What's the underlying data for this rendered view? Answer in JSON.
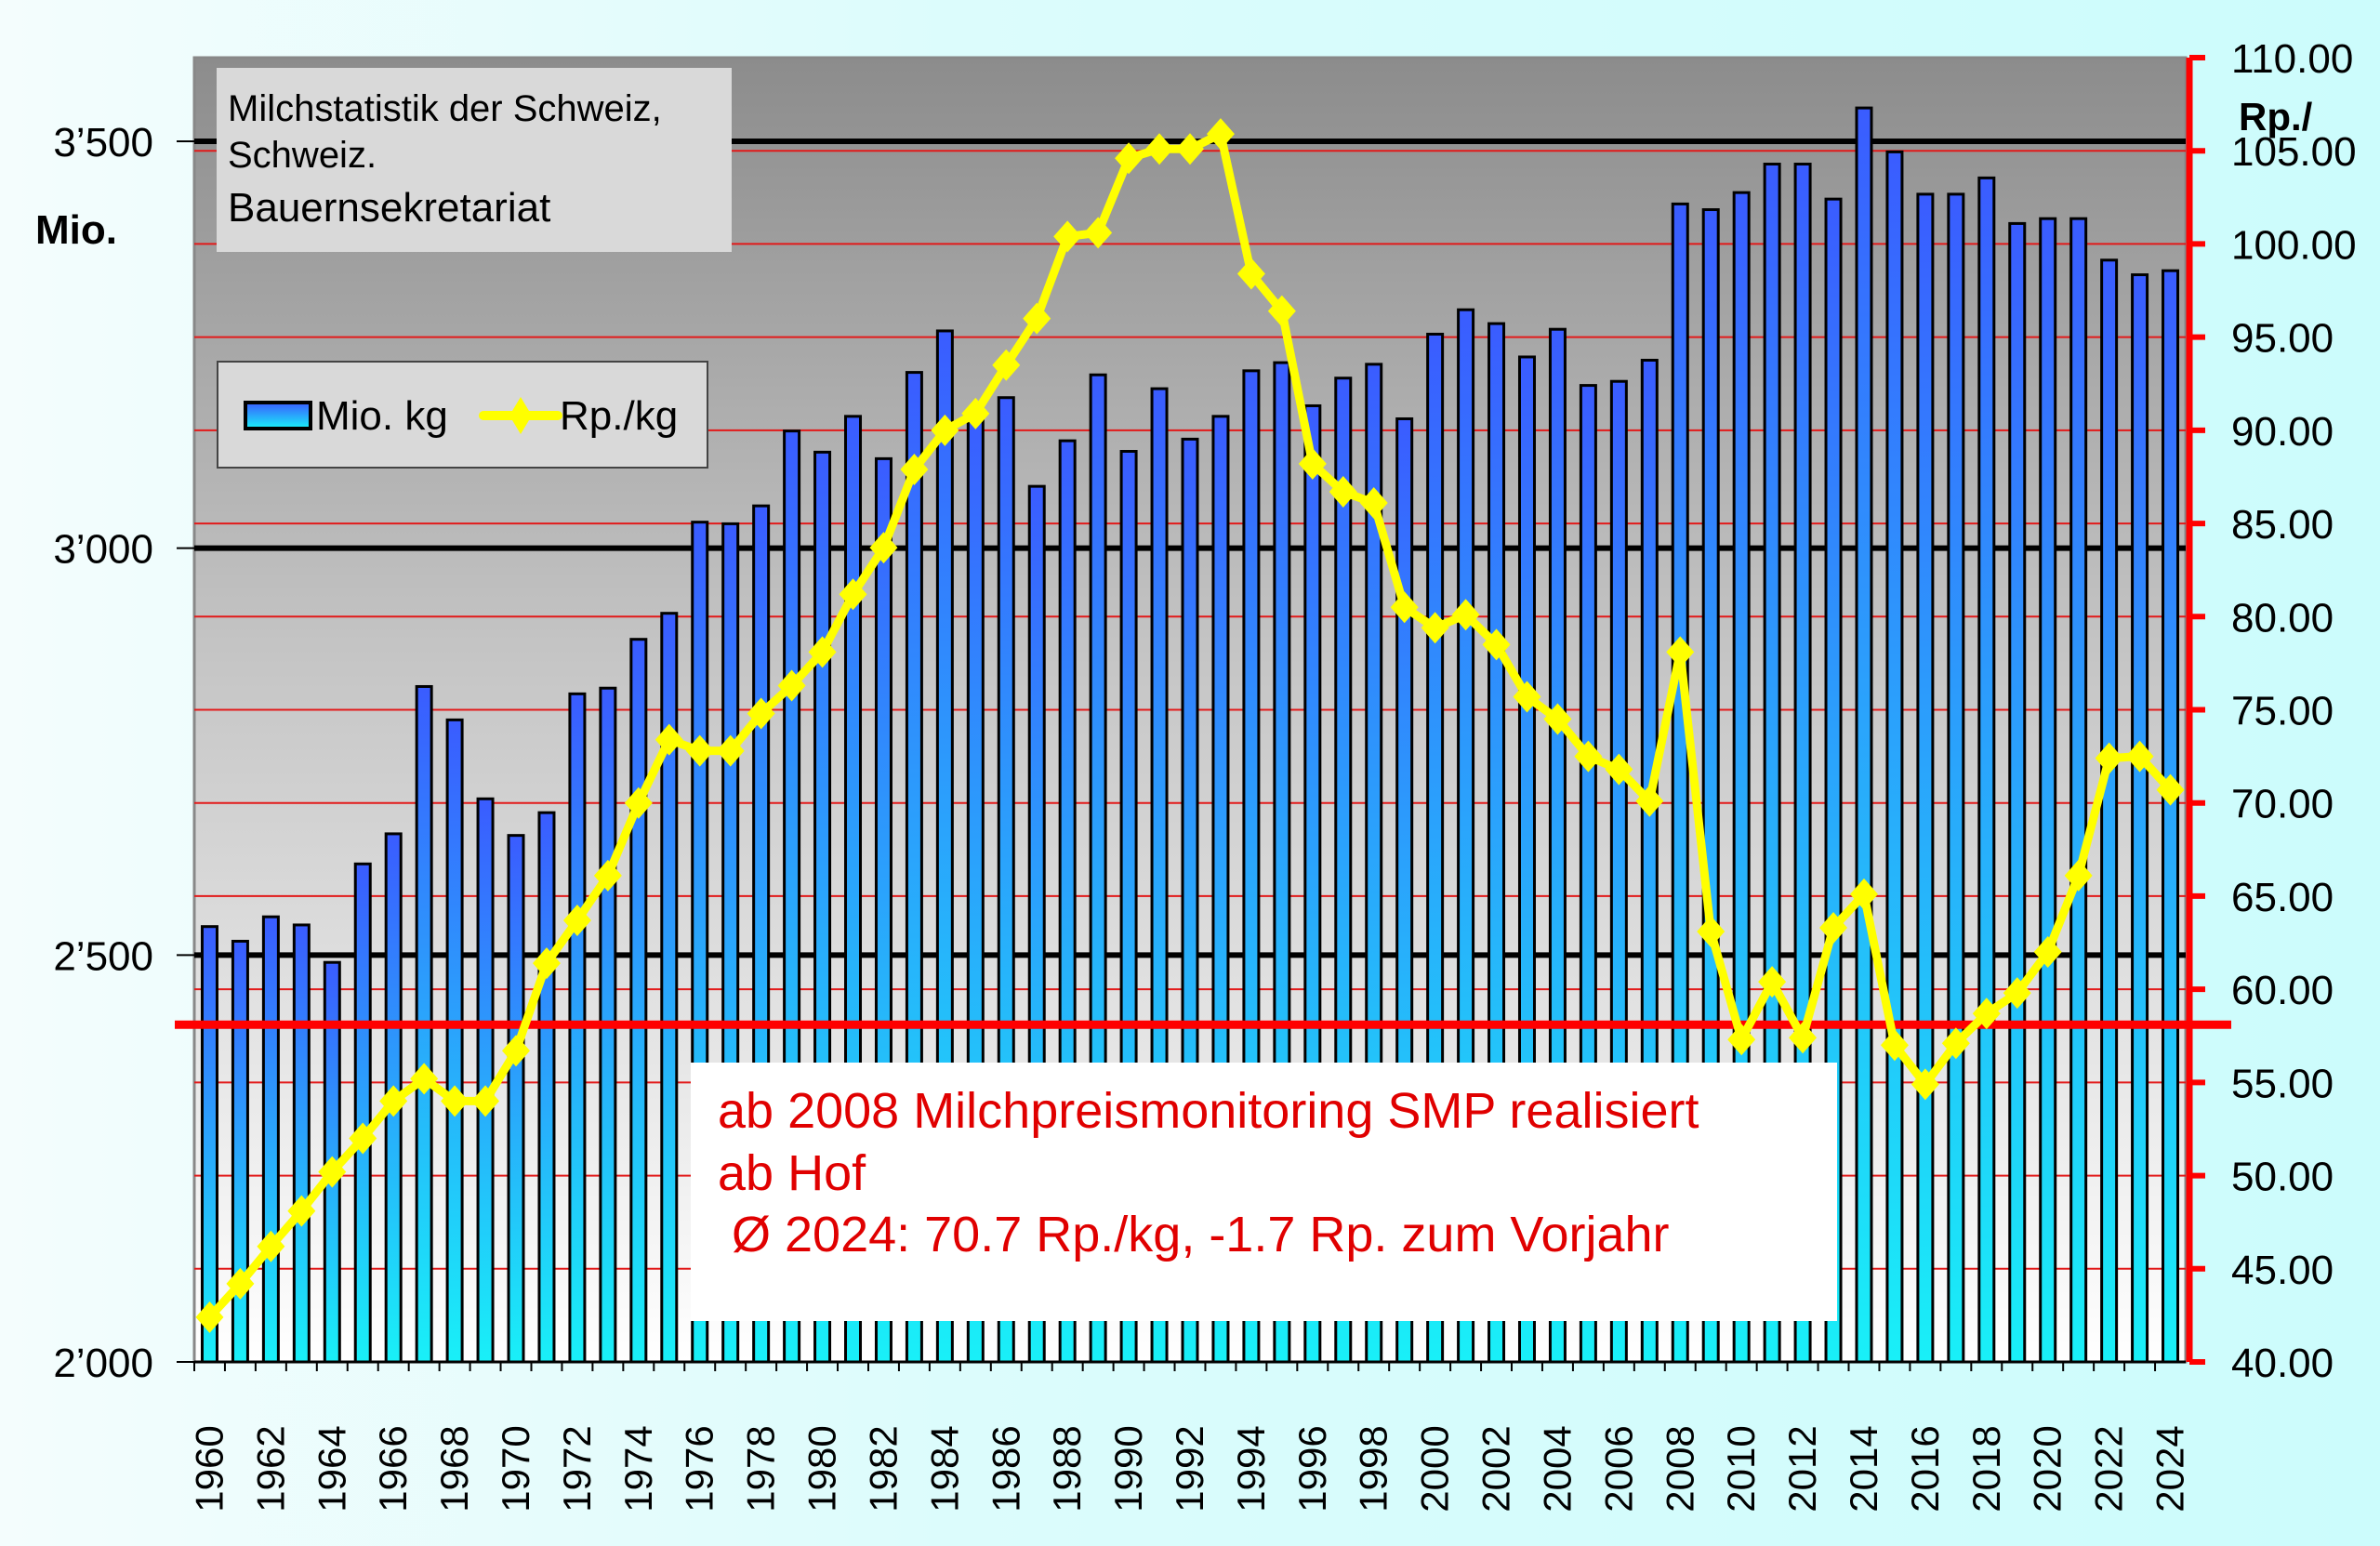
{
  "chart_data": {
    "type": "bar+line",
    "title_box": [
      "Milchstatistik der Schweiz,",
      "Schweiz.",
      "Bauernsekretariat"
    ],
    "left_axis": {
      "label": "Mio.",
      "range": [
        2000,
        3603
      ],
      "ticks": [
        2000,
        2500,
        3000,
        3500
      ],
      "tick_labels": [
        "2’000",
        "2’500",
        "3’000",
        "3’500"
      ]
    },
    "right_axis": {
      "label": "Rp./",
      "range": [
        40,
        110
      ],
      "ticks": [
        40,
        45,
        50,
        55,
        60,
        65,
        70,
        75,
        80,
        85,
        90,
        95,
        100,
        105,
        110
      ],
      "tick_labels": [
        "40.00",
        "45.00",
        "50.00",
        "55.00",
        "60.00",
        "65.00",
        "70.00",
        "75.00",
        "80.00",
        "85.00",
        "90.00",
        "95.00",
        "100.00",
        "105.00",
        "110.00"
      ]
    },
    "legend": {
      "placement": "top-left",
      "entries": [
        "Mio. kg",
        "Rp./kg"
      ]
    },
    "x": [
      1960,
      1961,
      1962,
      1963,
      1964,
      1965,
      1966,
      1967,
      1968,
      1969,
      1970,
      1971,
      1972,
      1973,
      1974,
      1975,
      1976,
      1977,
      1978,
      1979,
      1980,
      1981,
      1982,
      1983,
      1984,
      1985,
      1986,
      1987,
      1988,
      1989,
      1990,
      1991,
      1992,
      1993,
      1994,
      1995,
      1996,
      1997,
      1998,
      1999,
      2000,
      2001,
      2002,
      2003,
      2004,
      2005,
      2006,
      2007,
      2008,
      2009,
      2010,
      2011,
      2012,
      2013,
      2014,
      2015,
      2016,
      2017,
      2018,
      2019,
      2020,
      2021,
      2022,
      2023,
      2024
    ],
    "series": [
      {
        "name": "Mio. kg",
        "type": "bar",
        "axis": "left",
        "values": [
          2535,
          2517,
          2547,
          2537,
          2491,
          2612,
          2649,
          2830,
          2789,
          2692,
          2647,
          2675,
          2821,
          2828,
          2888,
          2920,
          3032,
          3030,
          3052,
          3144,
          3118,
          3162,
          3110,
          3216,
          3267,
          3170,
          3185,
          3076,
          3132,
          3213,
          3119,
          3196,
          3134,
          3162,
          3218,
          3228,
          3175,
          3209,
          3226,
          3159,
          3263,
          3293,
          3276,
          3235,
          3269,
          3200,
          3205,
          3231,
          3423,
          3416,
          3437,
          3472,
          3472,
          3429,
          3541,
          3487,
          3435,
          3435,
          3455,
          3399,
          3405,
          3405,
          3354,
          3336,
          3341
        ]
      },
      {
        "name": "Rp./kg",
        "type": "line",
        "axis": "right",
        "values": [
          42.4,
          44.2,
          46.2,
          48.1,
          50.2,
          52.0,
          54.0,
          55.2,
          54.0,
          54.0,
          56.7,
          61.4,
          63.7,
          66.1,
          70.0,
          73.4,
          72.8,
          72.8,
          74.8,
          76.3,
          78.1,
          81.2,
          83.7,
          87.9,
          90.0,
          90.9,
          93.5,
          96.0,
          100.4,
          100.6,
          104.6,
          105.1,
          105.1,
          105.9,
          98.4,
          96.4,
          88.2,
          86.7,
          86.1,
          80.5,
          79.4,
          80.1,
          78.5,
          75.7,
          74.5,
          72.5,
          71.8,
          70.1,
          78.1,
          63.1,
          57.3,
          60.4,
          57.4,
          63.3,
          65.1,
          57.0,
          54.9,
          57.1,
          58.7,
          59.8,
          62.0,
          66.1,
          72.4,
          72.5,
          70.7
        ]
      }
    ],
    "annotation": [
      "ab 2008 Milchpreismonitoring SMP realisiert",
      "ab Hof",
      " Ø 2024: 70.7 Rp./kg, -1.7 Rp. zum Vorjahr"
    ],
    "colors": {
      "bar_top": "#3a5cff",
      "bar_bottom": "#19f0f8",
      "line": "#ffff00",
      "grid_red": "#e21a1a",
      "axis_red": "#ff0000",
      "annotation": "#e00000"
    }
  }
}
